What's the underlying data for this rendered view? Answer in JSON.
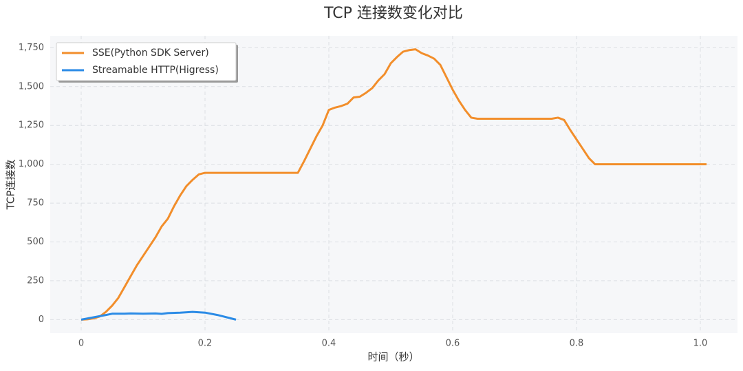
{
  "chart_data": {
    "type": "line",
    "title": "TCP 连接数变化对比",
    "xlabel": "时间（秒）",
    "ylabel": "TCP连接数",
    "xlim": [
      -0.05,
      1.06
    ],
    "ylim": [
      -87,
      1827
    ],
    "xticks": [
      0,
      0.2,
      0.4,
      0.6,
      0.8,
      {
        "value": 1,
        "label": "1.0"
      }
    ],
    "yticks": [
      0,
      250,
      500,
      750,
      {
        "value": 1000,
        "label": "1,000"
      },
      {
        "value": 1250,
        "label": "1,250"
      },
      {
        "value": 1500,
        "label": "1,500"
      },
      {
        "value": 1750,
        "label": "1,750"
      }
    ],
    "grid": true,
    "legend": "upper left",
    "series": [
      {
        "name": "SSE(Python SDK Server)",
        "color": "#f28e2b",
        "x": [
          0,
          0.01,
          0.02,
          0.03,
          0.04,
          0.05,
          0.06,
          0.07,
          0.08,
          0.09,
          0.1,
          0.11,
          0.12,
          0.13,
          0.14,
          0.15,
          0.16,
          0.17,
          0.18,
          0.19,
          0.2,
          0.35,
          0.36,
          0.37,
          0.38,
          0.39,
          0.4,
          0.41,
          0.42,
          0.43,
          0.44,
          0.45,
          0.46,
          0.47,
          0.48,
          0.49,
          0.5,
          0.51,
          0.52,
          0.53,
          0.54,
          0.55,
          0.56,
          0.57,
          0.58,
          0.59,
          0.6,
          0.61,
          0.62,
          0.63,
          0.64,
          0.76,
          0.77,
          0.78,
          0.79,
          0.8,
          0.81,
          0.82,
          0.83,
          1.01
        ],
        "values": [
          0,
          2,
          8,
          20,
          50,
          90,
          140,
          210,
          280,
          350,
          410,
          470,
          530,
          600,
          650,
          730,
          800,
          860,
          900,
          935,
          945,
          945,
          1020,
          1100,
          1180,
          1250,
          1350,
          1365,
          1375,
          1390,
          1430,
          1435,
          1460,
          1490,
          1540,
          1580,
          1650,
          1690,
          1725,
          1735,
          1740,
          1715,
          1700,
          1680,
          1640,
          1560,
          1480,
          1410,
          1350,
          1300,
          1293,
          1293,
          1300,
          1285,
          1220,
          1160,
          1100,
          1040,
          1000,
          1000
        ]
      },
      {
        "name": "Streamable HTTP(Higress)",
        "color": "#2b8be6",
        "x": [
          0,
          0.02,
          0.04,
          0.05,
          0.07,
          0.08,
          0.1,
          0.12,
          0.13,
          0.14,
          0.16,
          0.18,
          0.2,
          0.22,
          0.25
        ],
        "values": [
          0,
          15,
          30,
          38,
          38,
          40,
          38,
          40,
          37,
          42,
          45,
          50,
          45,
          30,
          0
        ]
      }
    ]
  }
}
